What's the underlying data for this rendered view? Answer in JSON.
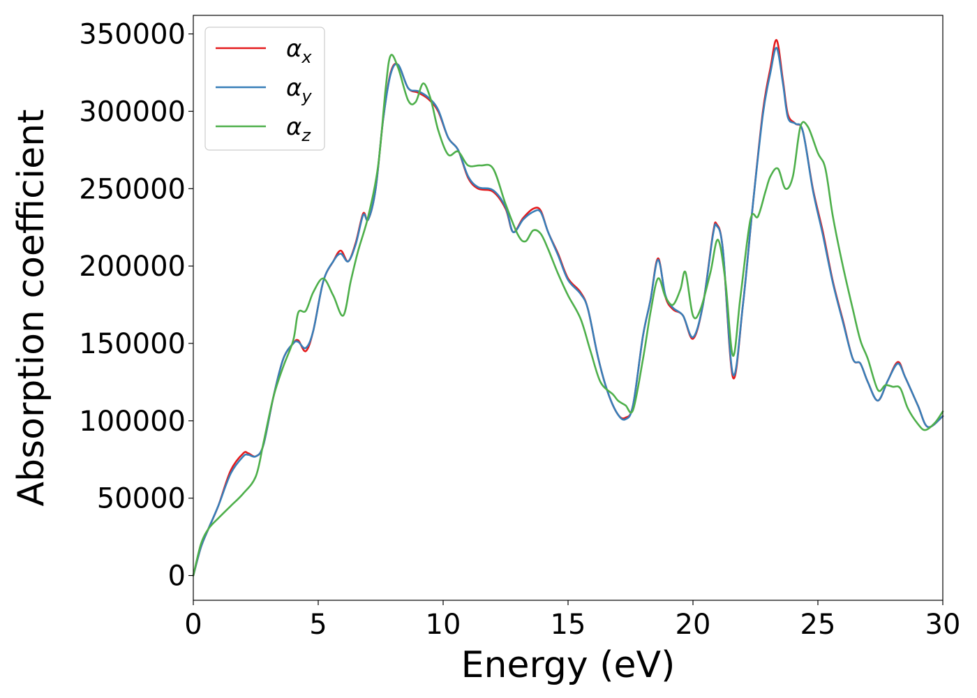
{
  "chart_data": {
    "type": "line",
    "title": "",
    "xlabel": "Energy (eV)",
    "ylabel": "Absorption coefficient",
    "xlim": [
      0,
      30
    ],
    "ylim": [
      -16000,
      362000
    ],
    "xticks": [
      0,
      5,
      10,
      15,
      20,
      25,
      30
    ],
    "xtick_labels": [
      "0",
      "5",
      "10",
      "15",
      "20",
      "25",
      "30"
    ],
    "yticks": [
      0,
      50000,
      100000,
      150000,
      200000,
      250000,
      300000,
      350000
    ],
    "ytick_labels": [
      "0",
      "50000",
      "100000",
      "150000",
      "200000",
      "250000",
      "300000",
      "350000"
    ],
    "grid": false,
    "legend_position": "top-left",
    "series": [
      {
        "name": "α",
        "subscript": "x",
        "color": "#e41a1c",
        "x": [
          0,
          0.3,
          0.6,
          1.0,
          1.5,
          2.0,
          2.2,
          2.5,
          2.8,
          3.2,
          3.6,
          4.0,
          4.2,
          4.5,
          4.8,
          5.2,
          5.6,
          5.9,
          6.2,
          6.5,
          6.8,
          7.0,
          7.3,
          7.6,
          7.9,
          8.2,
          8.6,
          9.0,
          9.4,
          9.8,
          10.2,
          10.6,
          11.0,
          11.4,
          12.0,
          12.5,
          12.8,
          13.2,
          13.6,
          13.9,
          14.2,
          14.6,
          15.0,
          15.5,
          15.8,
          16.2,
          16.6,
          17.0,
          17.3,
          17.6,
          18.0,
          18.3,
          18.6,
          18.9,
          19.2,
          19.6,
          20.0,
          20.4,
          20.8,
          20.95,
          21.2,
          21.6,
          22.0,
          22.4,
          22.8,
          23.1,
          23.35,
          23.6,
          23.8,
          24.1,
          24.4,
          24.8,
          25.2,
          25.6,
          26.0,
          26.4,
          26.7,
          27.0,
          27.4,
          27.8,
          28.2,
          28.5,
          29.0,
          29.4,
          30.0
        ],
        "y": [
          0,
          18000,
          30000,
          45000,
          68000,
          79000,
          79000,
          77000,
          84000,
          115000,
          140000,
          150000,
          152000,
          145000,
          158000,
          190000,
          203000,
          210000,
          203000,
          215000,
          234000,
          230000,
          250000,
          295000,
          325000,
          330000,
          315000,
          312000,
          308000,
          300000,
          283000,
          275000,
          257000,
          250000,
          248000,
          237000,
          222000,
          231000,
          237000,
          236000,
          222000,
          208000,
          192000,
          183000,
          172000,
          141000,
          118000,
          104000,
          102000,
          110000,
          155000,
          178000,
          205000,
          180000,
          172000,
          168000,
          153000,
          175000,
          221000,
          227000,
          210000,
          128000,
          175000,
          240000,
          300000,
          328000,
          346000,
          320000,
          298000,
          292000,
          287000,
          250000,
          222000,
          190000,
          165000,
          140000,
          137000,
          125000,
          113000,
          126000,
          138000,
          128000,
          110000,
          96000,
          103000
        ]
      },
      {
        "name": "α",
        "subscript": "y",
        "color": "#377eb8",
        "x": [
          0,
          0.3,
          0.6,
          1.0,
          1.5,
          2.0,
          2.2,
          2.5,
          2.8,
          3.2,
          3.6,
          4.0,
          4.2,
          4.5,
          4.8,
          5.2,
          5.6,
          5.9,
          6.2,
          6.5,
          6.8,
          7.0,
          7.3,
          7.6,
          7.9,
          8.2,
          8.6,
          9.0,
          9.4,
          9.8,
          10.2,
          10.6,
          11.0,
          11.4,
          12.0,
          12.5,
          12.8,
          13.2,
          13.6,
          13.9,
          14.2,
          14.6,
          15.0,
          15.5,
          15.8,
          16.2,
          16.6,
          17.0,
          17.3,
          17.6,
          18.0,
          18.3,
          18.6,
          18.9,
          19.2,
          19.6,
          20.0,
          20.4,
          20.8,
          20.95,
          21.2,
          21.6,
          22.0,
          22.4,
          22.8,
          23.1,
          23.35,
          23.6,
          23.8,
          24.1,
          24.4,
          24.8,
          25.2,
          25.6,
          26.0,
          26.4,
          26.7,
          27.0,
          27.4,
          27.8,
          28.2,
          28.5,
          29.0,
          29.4,
          30.0
        ],
        "y": [
          0,
          18000,
          30000,
          45000,
          66000,
          77000,
          78000,
          77000,
          84000,
          115000,
          140000,
          150000,
          151000,
          147000,
          158000,
          190000,
          203000,
          208000,
          203000,
          214000,
          233000,
          230000,
          250000,
          295000,
          324000,
          330000,
          315000,
          313000,
          309000,
          301000,
          283000,
          275000,
          258000,
          251000,
          249000,
          238000,
          222000,
          230000,
          235000,
          235000,
          222000,
          207000,
          191000,
          182000,
          172000,
          141000,
          118000,
          104000,
          101000,
          110000,
          155000,
          178000,
          204000,
          181000,
          173000,
          168000,
          154000,
          175000,
          220000,
          226000,
          210000,
          130000,
          175000,
          240000,
          298000,
          325000,
          341000,
          318000,
          296000,
          292000,
          287000,
          249000,
          220000,
          189000,
          164000,
          140000,
          137000,
          125000,
          113000,
          126000,
          137000,
          128000,
          110000,
          96000,
          103000
        ]
      },
      {
        "name": "α",
        "subscript": "z",
        "color": "#4daf4a",
        "x": [
          0,
          0.3,
          0.6,
          1.0,
          1.5,
          2.0,
          2.5,
          2.8,
          3.2,
          3.6,
          4.0,
          4.2,
          4.5,
          4.8,
          5.2,
          5.6,
          6.0,
          6.3,
          6.6,
          7.0,
          7.4,
          7.7,
          7.9,
          8.2,
          8.6,
          8.9,
          9.2,
          9.5,
          9.8,
          10.2,
          10.6,
          11.0,
          11.5,
          12.0,
          12.5,
          13.0,
          13.3,
          13.6,
          13.9,
          14.2,
          14.6,
          15.0,
          15.5,
          15.9,
          16.3,
          16.8,
          17.0,
          17.3,
          17.6,
          18.0,
          18.3,
          18.6,
          18.9,
          19.2,
          19.5,
          19.7,
          20.0,
          20.3,
          20.7,
          21.0,
          21.3,
          21.6,
          21.9,
          22.3,
          22.6,
          22.9,
          23.1,
          23.4,
          23.7,
          24.0,
          24.3,
          24.6,
          25.0,
          25.3,
          25.6,
          26.0,
          26.4,
          26.7,
          27.0,
          27.4,
          27.7,
          28.0,
          28.3,
          28.6,
          29.0,
          29.3,
          29.7,
          30.0
        ],
        "y": [
          0,
          20000,
          30000,
          37000,
          45000,
          53000,
          64000,
          85000,
          115000,
          135000,
          152000,
          170000,
          171000,
          183000,
          192000,
          181000,
          168000,
          190000,
          210000,
          232000,
          265000,
          315000,
          336000,
          328000,
          307000,
          306000,
          318000,
          308000,
          288000,
          272000,
          274000,
          265000,
          265000,
          263000,
          240000,
          220000,
          216000,
          223000,
          221000,
          211000,
          195000,
          181000,
          166000,
          145000,
          125000,
          117000,
          113000,
          110000,
          107000,
          140000,
          170000,
          192000,
          180000,
          175000,
          185000,
          196000,
          168000,
          172000,
          196000,
          217000,
          190000,
          142000,
          180000,
          230000,
          232000,
          248000,
          258000,
          263000,
          250000,
          258000,
          290000,
          290000,
          273000,
          263000,
          232000,
          200000,
          172000,
          152000,
          140000,
          120000,
          123000,
          122000,
          121000,
          108000,
          98000,
          94000,
          99000,
          106000
        ]
      }
    ]
  }
}
